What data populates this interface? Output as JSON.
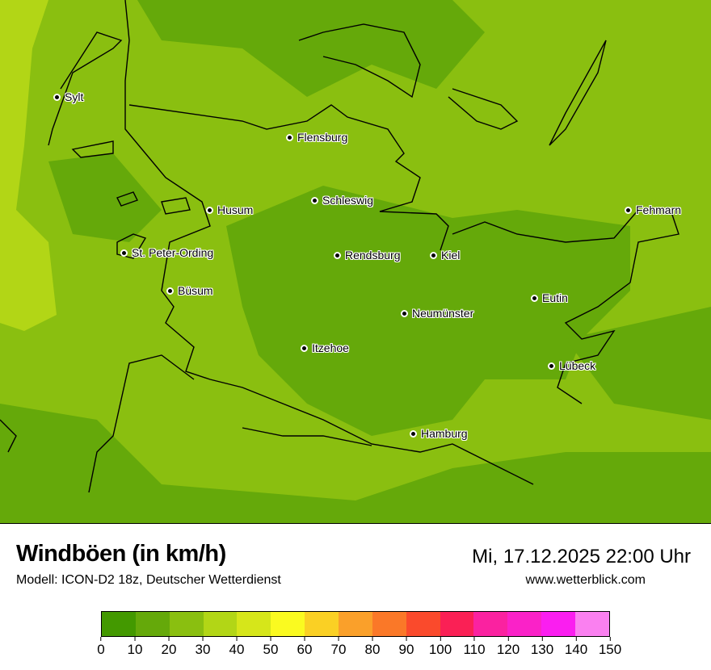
{
  "title": "Windböen (in km/h)",
  "subtitle": "Modell: ICON-D2 18z, Deutscher Wetterdienst",
  "datetime": "Mi, 17.12.2025 22:00 Uhr",
  "website": "www.wetterblick.com",
  "cities": [
    "Sylt",
    "Flensburg",
    "Schleswig",
    "Husum",
    "St. Peter-Ording",
    "Rendsburg",
    "Kiel",
    "Büsum",
    "Neumünster",
    "Eutin",
    "Fehmarn",
    "Itzehoe",
    "Lübeck",
    "Hamburg"
  ],
  "legend": {
    "ticks": [
      "0",
      "10",
      "20",
      "30",
      "40",
      "50",
      "60",
      "70",
      "80",
      "90",
      "100",
      "110",
      "120",
      "130",
      "140",
      "150"
    ],
    "colors": [
      "#439900",
      "#65a90a",
      "#8abf10",
      "#b2d616",
      "#d6e61a",
      "#fafa20",
      "#fad024",
      "#faa02a",
      "#fa7828",
      "#fa4a2c",
      "#fa2055",
      "#fa22a0",
      "#fa22c8",
      "#fa1ef0",
      "#fa80f0"
    ]
  }
}
